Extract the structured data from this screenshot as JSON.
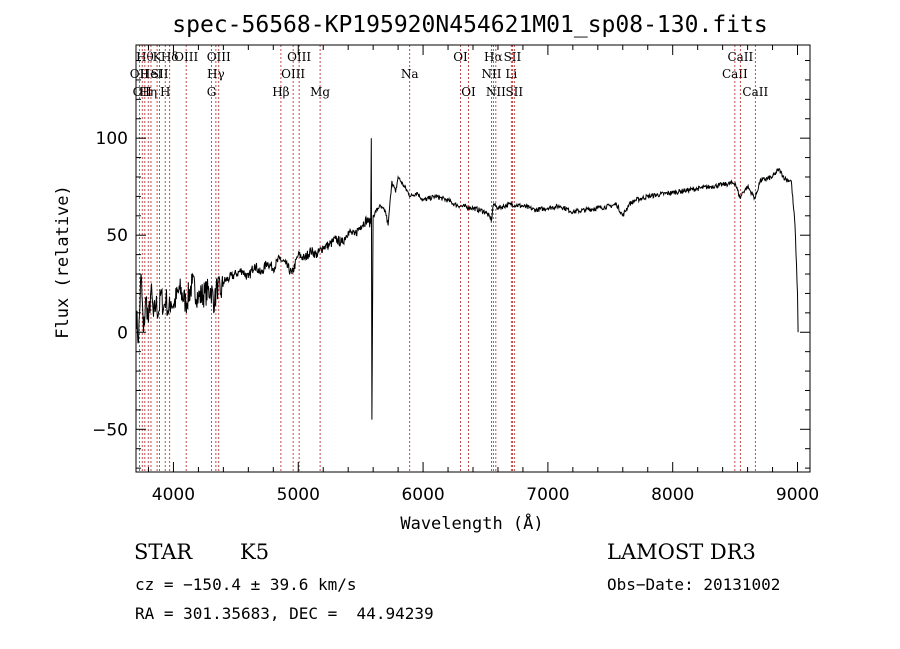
{
  "chart_data": {
    "type": "line",
    "title": "spec-56568-KP195920N454621M01_sp08-130.fits",
    "xlabel": "Wavelength (Å)",
    "ylabel": "Flux (relative)",
    "xlim": [
      3700,
      9100
    ],
    "ylim": [
      -72,
      148
    ],
    "xticks": [
      4000,
      5000,
      6000,
      7000,
      8000,
      9000
    ],
    "yticks": [
      -50,
      0,
      50,
      100
    ],
    "series": [
      {
        "name": "flux",
        "x": [
          3700,
          3720,
          3740,
          3760,
          3780,
          3800,
          3820,
          3840,
          3860,
          3880,
          3900,
          3920,
          3940,
          3960,
          3980,
          4000,
          4050,
          4100,
          4150,
          4200,
          4250,
          4300,
          4330,
          4350,
          4380,
          4400,
          4450,
          4500,
          4550,
          4600,
          4650,
          4700,
          4750,
          4800,
          4850,
          4900,
          4950,
          5000,
          5050,
          5100,
          5150,
          5200,
          5250,
          5300,
          5350,
          5400,
          5450,
          5500,
          5550,
          5580,
          5585,
          5590,
          5600,
          5650,
          5700,
          5720,
          5750,
          5780,
          5800,
          5850,
          5900,
          5950,
          6000,
          6100,
          6200,
          6250,
          6300,
          6400,
          6500,
          6550,
          6560,
          6565,
          6600,
          6700,
          6800,
          6900,
          7000,
          7100,
          7200,
          7300,
          7400,
          7500,
          7550,
          7600,
          7650,
          7700,
          7800,
          7900,
          8000,
          8100,
          8200,
          8300,
          8400,
          8500,
          8540,
          8560,
          8600,
          8660,
          8700,
          8800,
          8850,
          8900,
          8950,
          8980,
          9000,
          9005
        ],
        "y": [
          12,
          -5,
          30,
          0,
          18,
          5,
          22,
          8,
          15,
          10,
          20,
          12,
          18,
          10,
          16,
          14,
          22,
          15,
          25,
          18,
          20,
          22,
          15,
          24,
          20,
          26,
          28,
          30,
          32,
          28,
          35,
          30,
          36,
          33,
          38,
          35,
          30,
          40,
          38,
          42,
          40,
          44,
          45,
          48,
          46,
          52,
          50,
          55,
          58,
          56,
          100,
          -45,
          60,
          65,
          62,
          55,
          78,
          72,
          80,
          75,
          70,
          72,
          68,
          70,
          68,
          66,
          65,
          64,
          62,
          58,
          65,
          66,
          64,
          66,
          65,
          63,
          64,
          65,
          62,
          63,
          64,
          65,
          66,
          60,
          66,
          68,
          70,
          71,
          72,
          73,
          74,
          75,
          76,
          77,
          69,
          72,
          75,
          69,
          78,
          80,
          84,
          79,
          78,
          55,
          20,
          0
        ]
      }
    ],
    "line_markers": [
      {
        "w": 3727,
        "label": "OII",
        "row": 2
      },
      {
        "w": 3750,
        "label": "OII",
        "row": 3
      },
      {
        "w": 3771,
        "label": "Hθ",
        "row": 1
      },
      {
        "w": 3798,
        "label": "Hη",
        "row": 3
      },
      {
        "w": 3820,
        "label": "HeI",
        "row": 2
      },
      {
        "w": 3869,
        "label": "K",
        "row": 1
      },
      {
        "w": 3889,
        "label": "SII",
        "row": 2
      },
      {
        "w": 3934,
        "label": "H",
        "row": 3
      },
      {
        "w": 3970,
        "label": "Hδ",
        "row": 1
      },
      {
        "w": 4102,
        "label": "OIII",
        "row": 1
      },
      {
        "w": 4305,
        "label": "G",
        "row": 3
      },
      {
        "w": 4340,
        "label": "Hγ",
        "row": 2
      },
      {
        "w": 4363,
        "label": "OIII",
        "row": 1
      },
      {
        "w": 4861,
        "label": "Hβ",
        "row": 3
      },
      {
        "w": 4959,
        "label": "OIII",
        "row": 2
      },
      {
        "w": 5007,
        "label": "OIII",
        "row": 1
      },
      {
        "w": 5175,
        "label": "Mg",
        "row": 3
      },
      {
        "w": 5893,
        "label": "Na",
        "row": 2
      },
      {
        "w": 6300,
        "label": "OI",
        "row": 1
      },
      {
        "w": 6364,
        "label": "OI",
        "row": 3
      },
      {
        "w": 6548,
        "label": "NII",
        "row": 2
      },
      {
        "w": 6563,
        "label": "Hα",
        "row": 1
      },
      {
        "w": 6583,
        "label": "NII",
        "row": 3
      },
      {
        "w": 6707,
        "label": "Li",
        "row": 2
      },
      {
        "w": 6716,
        "label": "SII",
        "row": 1
      },
      {
        "w": 6731,
        "label": "SII",
        "row": 3
      },
      {
        "w": 8498,
        "label": "CaII",
        "row": 2
      },
      {
        "w": 8542,
        "label": "CaII",
        "row": 1
      },
      {
        "w": 8662,
        "label": "CaII",
        "row": 3
      }
    ]
  },
  "info": {
    "class": "STAR",
    "subclass": "K5",
    "survey": "LAMOST DR3",
    "redshift": "cz = −150.4 ± 39.6 km/s",
    "obs_date": "Obs−Date: 20131002",
    "coords": "RA = 301.35683, DEC =  44.94239"
  }
}
